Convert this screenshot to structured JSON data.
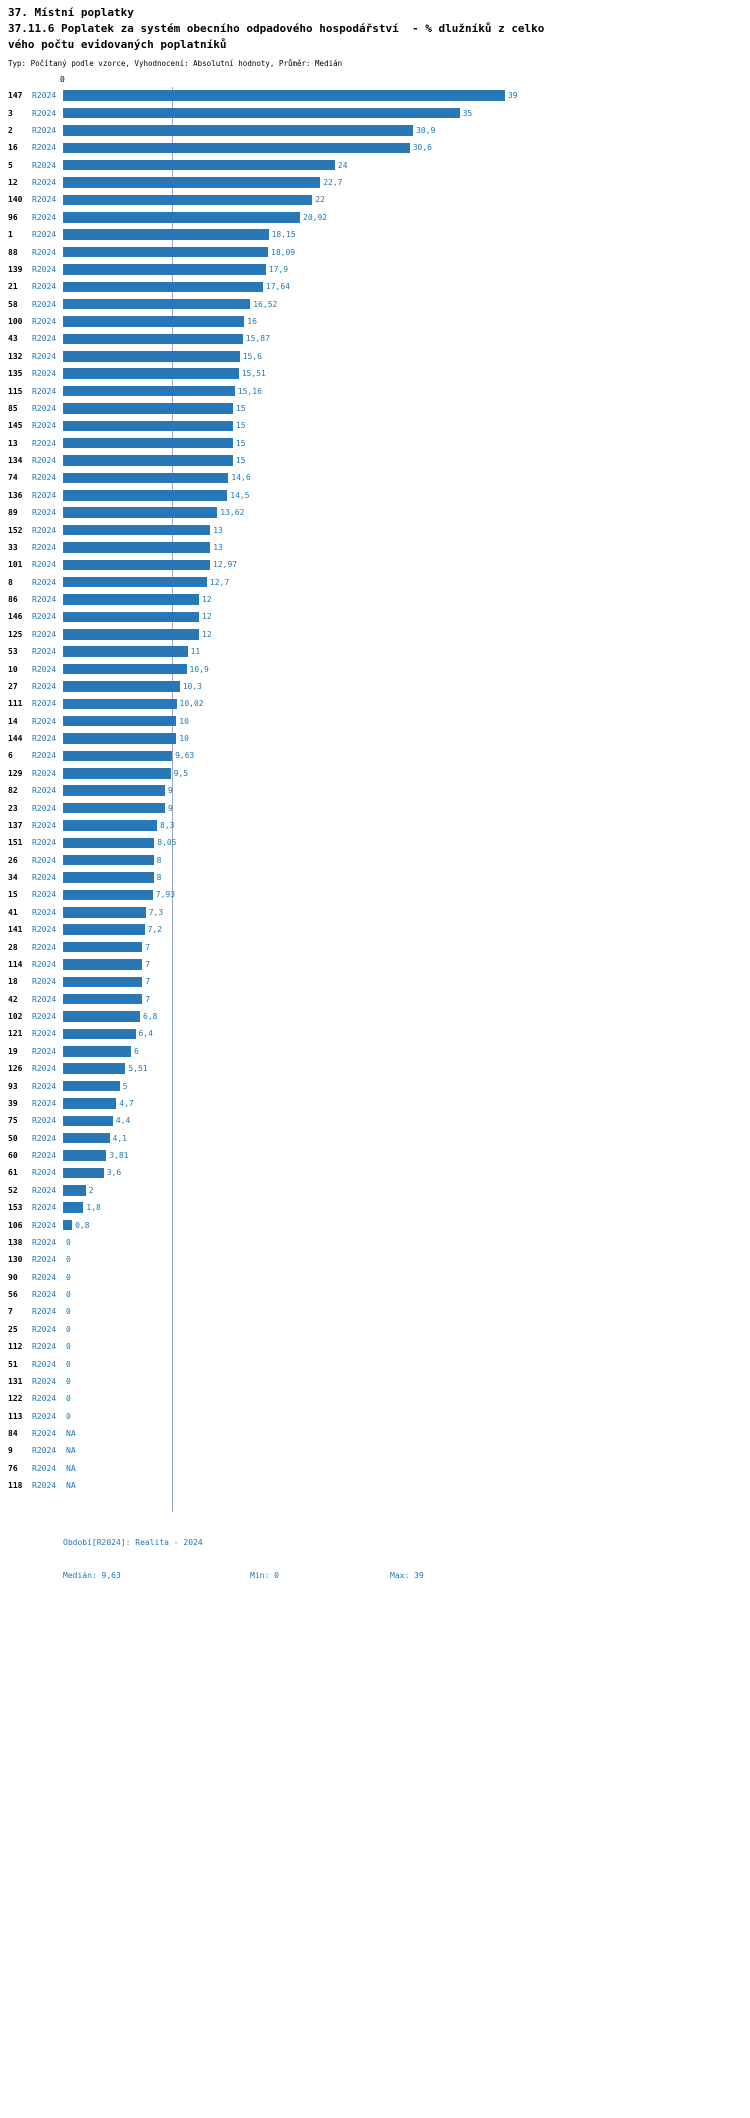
{
  "page": {
    "title": "37. Místní poplatky",
    "subtitle": "37.11.6 Poplatek za systém obecního odpadového hospodářství  - % dlužníků z celkového počtu evidovaných poplatníků",
    "meta": "Typ: Počítaný podle vzorce, Vyhodnocení: Absolutní hodnoty, Průměr: Medián"
  },
  "colors": {
    "bar": "#2878b8",
    "bar_value_label": "#1f77b4",
    "series_label": "#1f77b4",
    "footer_text": "#1f77b4",
    "median_line": "#97a7cc",
    "row_id": "#000000"
  },
  "chart_data": {
    "type": "bar",
    "orientation": "horizontal",
    "title": "37. Místní poplatky",
    "subtitle": "37.11.6 Poplatek za systém obecního odpadového hospodářství  - % dlužníků z celkového počtu evidovaných poplatníků",
    "series_label": "R2024",
    "x_axis": {
      "top_tick_label": "0",
      "xlim": [
        0,
        39
      ]
    },
    "grid": "median-reference-line",
    "legend_position": "none",
    "median_value": 9.63,
    "min_value": 0,
    "max_value": 39,
    "rows": [
      {
        "id": "147",
        "value": 39,
        "label": "39"
      },
      {
        "id": "3",
        "value": 35,
        "label": "35"
      },
      {
        "id": "2",
        "value": 30.9,
        "label": "30,9"
      },
      {
        "id": "16",
        "value": 30.6,
        "label": "30,6"
      },
      {
        "id": "5",
        "value": 24,
        "label": "24"
      },
      {
        "id": "12",
        "value": 22.7,
        "label": "22,7"
      },
      {
        "id": "140",
        "value": 22,
        "label": "22"
      },
      {
        "id": "96",
        "value": 20.92,
        "label": "20,92"
      },
      {
        "id": "1",
        "value": 18.15,
        "label": "18,15"
      },
      {
        "id": "88",
        "value": 18.09,
        "label": "18,09"
      },
      {
        "id": "139",
        "value": 17.9,
        "label": "17,9"
      },
      {
        "id": "21",
        "value": 17.64,
        "label": "17,64"
      },
      {
        "id": "58",
        "value": 16.52,
        "label": "16,52"
      },
      {
        "id": "100",
        "value": 16,
        "label": "16"
      },
      {
        "id": "43",
        "value": 15.87,
        "label": "15,87"
      },
      {
        "id": "132",
        "value": 15.6,
        "label": "15,6"
      },
      {
        "id": "135",
        "value": 15.51,
        "label": "15,51"
      },
      {
        "id": "115",
        "value": 15.16,
        "label": "15,16"
      },
      {
        "id": "85",
        "value": 15,
        "label": "15"
      },
      {
        "id": "145",
        "value": 15,
        "label": "15"
      },
      {
        "id": "13",
        "value": 15,
        "label": "15"
      },
      {
        "id": "134",
        "value": 15,
        "label": "15"
      },
      {
        "id": "74",
        "value": 14.6,
        "label": "14,6"
      },
      {
        "id": "136",
        "value": 14.5,
        "label": "14,5"
      },
      {
        "id": "89",
        "value": 13.62,
        "label": "13,62"
      },
      {
        "id": "152",
        "value": 13,
        "label": "13"
      },
      {
        "id": "33",
        "value": 13,
        "label": "13"
      },
      {
        "id": "101",
        "value": 12.97,
        "label": "12,97"
      },
      {
        "id": "8",
        "value": 12.7,
        "label": "12,7"
      },
      {
        "id": "86",
        "value": 12,
        "label": "12"
      },
      {
        "id": "146",
        "value": 12,
        "label": "12"
      },
      {
        "id": "125",
        "value": 12,
        "label": "12"
      },
      {
        "id": "53",
        "value": 11,
        "label": "11"
      },
      {
        "id": "10",
        "value": 10.9,
        "label": "10,9"
      },
      {
        "id": "27",
        "value": 10.3,
        "label": "10,3"
      },
      {
        "id": "111",
        "value": 10.02,
        "label": "10,02"
      },
      {
        "id": "14",
        "value": 10,
        "label": "10"
      },
      {
        "id": "144",
        "value": 10,
        "label": "10"
      },
      {
        "id": "6",
        "value": 9.63,
        "label": "9,63"
      },
      {
        "id": "129",
        "value": 9.5,
        "label": "9,5"
      },
      {
        "id": "82",
        "value": 9,
        "label": "9"
      },
      {
        "id": "23",
        "value": 9,
        "label": "9"
      },
      {
        "id": "137",
        "value": 8.3,
        "label": "8,3"
      },
      {
        "id": "151",
        "value": 8.05,
        "label": "8,05"
      },
      {
        "id": "26",
        "value": 8,
        "label": "8"
      },
      {
        "id": "34",
        "value": 8,
        "label": "8"
      },
      {
        "id": "15",
        "value": 7.93,
        "label": "7,93"
      },
      {
        "id": "41",
        "value": 7.3,
        "label": "7,3"
      },
      {
        "id": "141",
        "value": 7.2,
        "label": "7,2"
      },
      {
        "id": "28",
        "value": 7,
        "label": "7"
      },
      {
        "id": "114",
        "value": 7,
        "label": "7"
      },
      {
        "id": "18",
        "value": 7,
        "label": "7"
      },
      {
        "id": "42",
        "value": 7,
        "label": "7"
      },
      {
        "id": "102",
        "value": 6.8,
        "label": "6,8"
      },
      {
        "id": "121",
        "value": 6.4,
        "label": "6,4"
      },
      {
        "id": "19",
        "value": 6,
        "label": "6"
      },
      {
        "id": "126",
        "value": 5.51,
        "label": "5,51"
      },
      {
        "id": "93",
        "value": 5,
        "label": "5"
      },
      {
        "id": "39",
        "value": 4.7,
        "label": "4,7"
      },
      {
        "id": "75",
        "value": 4.4,
        "label": "4,4"
      },
      {
        "id": "50",
        "value": 4.1,
        "label": "4,1"
      },
      {
        "id": "60",
        "value": 3.81,
        "label": "3,81"
      },
      {
        "id": "61",
        "value": 3.6,
        "label": "3,6"
      },
      {
        "id": "52",
        "value": 2,
        "label": "2"
      },
      {
        "id": "153",
        "value": 1.8,
        "label": "1,8"
      },
      {
        "id": "106",
        "value": 0.8,
        "label": "0,8"
      },
      {
        "id": "138",
        "value": 0,
        "label": "0"
      },
      {
        "id": "130",
        "value": 0,
        "label": "0"
      },
      {
        "id": "90",
        "value": 0,
        "label": "0"
      },
      {
        "id": "56",
        "value": 0,
        "label": "0"
      },
      {
        "id": "7",
        "value": 0,
        "label": "0"
      },
      {
        "id": "25",
        "value": 0,
        "label": "0"
      },
      {
        "id": "112",
        "value": 0,
        "label": "0"
      },
      {
        "id": "51",
        "value": 0,
        "label": "0"
      },
      {
        "id": "131",
        "value": 0,
        "label": "0"
      },
      {
        "id": "122",
        "value": 0,
        "label": "0"
      },
      {
        "id": "113",
        "value": 0,
        "label": "0"
      },
      {
        "id": "84",
        "value": null,
        "label": "NA"
      },
      {
        "id": "9",
        "value": null,
        "label": "NA"
      },
      {
        "id": "76",
        "value": null,
        "label": "NA"
      },
      {
        "id": "118",
        "value": null,
        "label": "NA"
      }
    ],
    "footer": {
      "period": "Období[R2024]: Realita - 2024",
      "median": "Medián: 9,63",
      "min": "Min: 0",
      "max": "Max: 39"
    }
  }
}
